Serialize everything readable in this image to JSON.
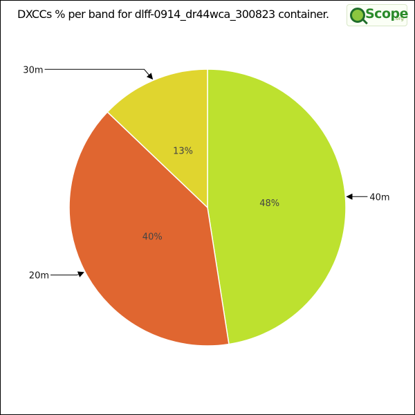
{
  "chart_data": {
    "type": "pie",
    "title": "DXCCs % per band for dlff-0914_dr44wca_300823 container.",
    "categories": [
      "40m",
      "20m",
      "30m"
    ],
    "values": [
      48,
      40,
      13
    ],
    "value_labels": [
      "48%",
      "40%",
      "13%"
    ],
    "colors": [
      "#bde12f",
      "#e06630",
      "#e0d52f"
    ],
    "start_angle_deg": 0,
    "direction": "clockwise",
    "legend": "none"
  },
  "logo": {
    "word": "Scope",
    "suffix": ".org"
  }
}
